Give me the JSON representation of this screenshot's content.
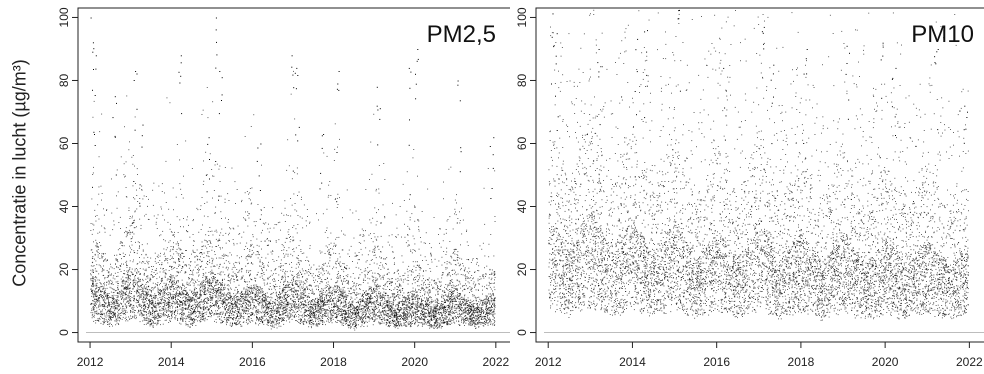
{
  "figure": {
    "ylabel": "Concentratie in lucht (µg/m³)"
  },
  "chart_data": [
    {
      "type": "scatter",
      "panel_label": "PM2,5",
      "x_ticks": [
        2012,
        2014,
        2016,
        2018,
        2020,
        2022
      ],
      "y_ticks": [
        0,
        20,
        40,
        60,
        80,
        100
      ],
      "xlim": [
        2011.9,
        2022.3
      ],
      "ylim": [
        -3,
        103
      ],
      "reference_line_y": 0,
      "point_color": "#000000",
      "baseline_color": "#bdbdbd",
      "monthly_typical": [
        [
          2012.0,
          12
        ],
        [
          2012.5,
          7
        ],
        [
          2013.0,
          13
        ],
        [
          2013.5,
          7
        ],
        [
          2014.0,
          11
        ],
        [
          2014.5,
          7
        ],
        [
          2015.0,
          12
        ],
        [
          2015.5,
          7
        ],
        [
          2016.0,
          10
        ],
        [
          2016.5,
          6
        ],
        [
          2017.0,
          12
        ],
        [
          2017.5,
          6
        ],
        [
          2018.0,
          10
        ],
        [
          2018.5,
          5
        ],
        [
          2019.0,
          10
        ],
        [
          2019.5,
          5
        ],
        [
          2020.0,
          8
        ],
        [
          2020.5,
          5
        ],
        [
          2021.0,
          9
        ],
        [
          2021.5,
          5
        ],
        [
          2021.95,
          8
        ]
      ],
      "spikes": [
        [
          2012.05,
          100
        ],
        [
          2012.1,
          88
        ],
        [
          2012.6,
          75
        ],
        [
          2013.1,
          83
        ],
        [
          2013.25,
          66
        ],
        [
          2014.2,
          88
        ],
        [
          2014.9,
          62
        ],
        [
          2015.1,
          100
        ],
        [
          2015.2,
          83
        ],
        [
          2016.15,
          60
        ],
        [
          2017.0,
          88
        ],
        [
          2017.1,
          84
        ],
        [
          2017.7,
          63
        ],
        [
          2018.1,
          83
        ],
        [
          2019.1,
          78
        ],
        [
          2019.9,
          84
        ],
        [
          2020.05,
          90
        ],
        [
          2021.1,
          80
        ],
        [
          2021.9,
          62
        ]
      ]
    },
    {
      "type": "scatter",
      "panel_label": "PM10",
      "x_ticks": [
        2012,
        2014,
        2016,
        2018,
        2020,
        2022
      ],
      "y_ticks": [
        0,
        20,
        40,
        60,
        80,
        100
      ],
      "xlim": [
        2011.9,
        2022.3
      ],
      "ylim": [
        -3,
        103
      ],
      "reference_line_y": 0,
      "point_color": "#000000",
      "baseline_color": "#bdbdbd",
      "monthly_typical": [
        [
          2012.0,
          22
        ],
        [
          2012.5,
          16
        ],
        [
          2013.0,
          24
        ],
        [
          2013.5,
          16
        ],
        [
          2014.0,
          22
        ],
        [
          2014.5,
          15
        ],
        [
          2015.0,
          22
        ],
        [
          2015.5,
          14
        ],
        [
          2016.0,
          20
        ],
        [
          2016.5,
          14
        ],
        [
          2017.0,
          22
        ],
        [
          2017.5,
          14
        ],
        [
          2018.0,
          20
        ],
        [
          2018.5,
          13
        ],
        [
          2019.0,
          20
        ],
        [
          2019.5,
          13
        ],
        [
          2020.0,
          18
        ],
        [
          2020.5,
          13
        ],
        [
          2021.0,
          18
        ],
        [
          2021.5,
          13
        ],
        [
          2021.95,
          17
        ]
      ],
      "spikes": [
        [
          2012.1,
          103
        ],
        [
          2012.2,
          95
        ],
        [
          2013.2,
          90
        ],
        [
          2014.1,
          103
        ],
        [
          2014.3,
          96
        ],
        [
          2015.1,
          103
        ],
        [
          2016.2,
          84
        ],
        [
          2017.1,
          97
        ],
        [
          2017.3,
          85
        ],
        [
          2018.1,
          90
        ],
        [
          2019.1,
          91
        ],
        [
          2019.9,
          92
        ],
        [
          2020.2,
          84
        ],
        [
          2021.2,
          90
        ],
        [
          2021.9,
          72
        ]
      ]
    }
  ]
}
